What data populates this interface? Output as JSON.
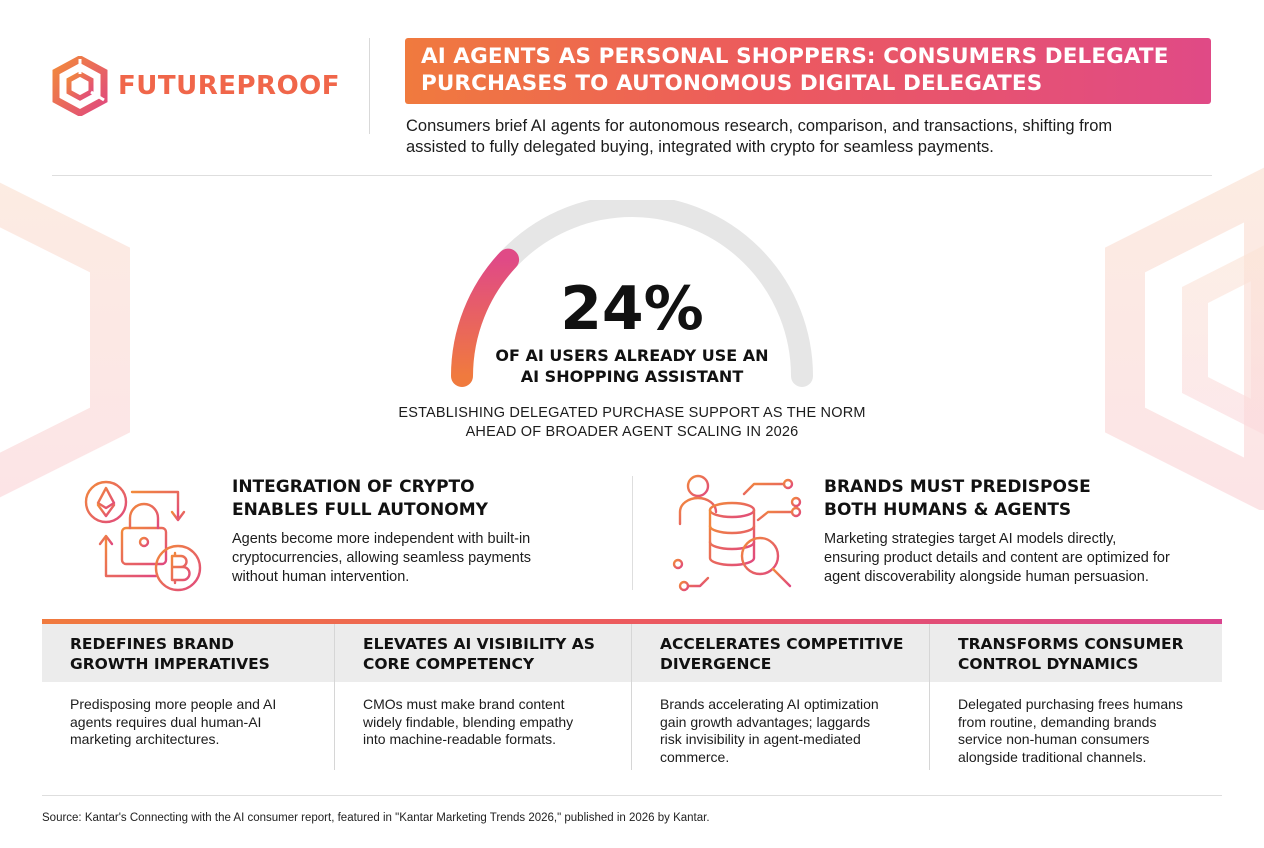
{
  "brand": {
    "name": "FUTUREPROOF",
    "accent": "#f0664a",
    "gradient": [
      "#f07a3e",
      "#ec5a5e",
      "#e04a86"
    ]
  },
  "header": {
    "title_line1": "AI AGENTS AS PERSONAL SHOPPERS: CONSUMERS DELEGATE",
    "title_line2": "PURCHASES TO AUTONOMOUS DIGITAL DELEGATES",
    "subtitle_line1": "Consumers brief AI agents for autonomous research, comparison, and transactions, shifting from",
    "subtitle_line2": "assisted to fully delegated buying, integrated with crypto for seamless payments."
  },
  "stat": {
    "value": "24%",
    "gauge_fraction": 0.24,
    "label_line1": "OF AI USERS ALREADY USE AN",
    "label_line2": "AI SHOPPING ASSISTANT",
    "note_line1": "ESTABLISHING DELEGATED PURCHASE SUPPORT AS THE NORM",
    "note_line2": "AHEAD OF BROADER AGENT SCALING IN 2026"
  },
  "features": [
    {
      "icon": "crypto-lock-icon",
      "title_line1": "INTEGRATION OF CRYPTO",
      "title_line2": "ENABLES FULL AUTONOMY",
      "body_line1": "Agents become more independent with built-in",
      "body_line2": "cryptocurrencies, allowing seamless payments",
      "body_line3": "without human intervention."
    },
    {
      "icon": "human-agent-database-icon",
      "title_line1": "BRANDS MUST PREDISPOSE",
      "title_line2": "BOTH HUMANS & AGENTS",
      "body_line1": "Marketing strategies target AI models directly,",
      "body_line2": "ensuring product details and content are optimized for",
      "body_line3": "agent discoverability alongside human persuasion."
    }
  ],
  "columns": [
    {
      "title_line1": "REDEFINES BRAND",
      "title_line2": "GROWTH IMPERATIVES",
      "body": [
        "Predisposing more people and AI",
        "agents requires dual human-AI",
        "marketing architectures."
      ]
    },
    {
      "title_line1": "ELEVATES AI VISIBILITY AS",
      "title_line2": "CORE COMPETENCY",
      "body": [
        "CMOs must make brand content",
        "widely findable, blending empathy",
        "into machine-readable formats."
      ]
    },
    {
      "title_line1": "ACCELERATES COMPETITIVE",
      "title_line2": "DIVERGENCE",
      "body": [
        "Brands accelerating AI optimization",
        "gain growth advantages; laggards",
        "risk invisibility in agent-mediated",
        "commerce."
      ]
    },
    {
      "title_line1": "TRANSFORMS CONSUMER",
      "title_line2": "CONTROL DYNAMICS",
      "body": [
        "Delegated purchasing frees humans",
        "from routine, demanding brands",
        "service non-human consumers",
        "alongside traditional channels."
      ]
    }
  ],
  "source": "Source: Kantar's Connecting with the AI consumer report, featured in \"Kantar Marketing Trends 2026,\" published in 2026 by Kantar."
}
